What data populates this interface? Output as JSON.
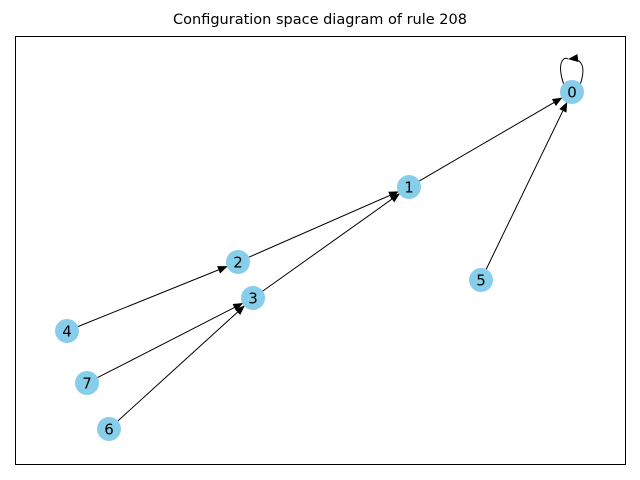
{
  "title": "Configuration space diagram of rule 208",
  "style": {
    "node_color": "#87ceeb",
    "edge_color": "#000000",
    "label_color": "#000000",
    "frame_color": "#000000"
  },
  "nodes": [
    {
      "id": "0",
      "label": "0"
    },
    {
      "id": "1",
      "label": "1"
    },
    {
      "id": "2",
      "label": "2"
    },
    {
      "id": "3",
      "label": "3"
    },
    {
      "id": "4",
      "label": "4"
    },
    {
      "id": "5",
      "label": "5"
    },
    {
      "id": "6",
      "label": "6"
    },
    {
      "id": "7",
      "label": "7"
    }
  ],
  "edges": [
    {
      "from": "0",
      "to": "0"
    },
    {
      "from": "1",
      "to": "0"
    },
    {
      "from": "5",
      "to": "0"
    },
    {
      "from": "2",
      "to": "1"
    },
    {
      "from": "3",
      "to": "1"
    },
    {
      "from": "4",
      "to": "2"
    },
    {
      "from": "7",
      "to": "3"
    },
    {
      "from": "6",
      "to": "3"
    }
  ]
}
